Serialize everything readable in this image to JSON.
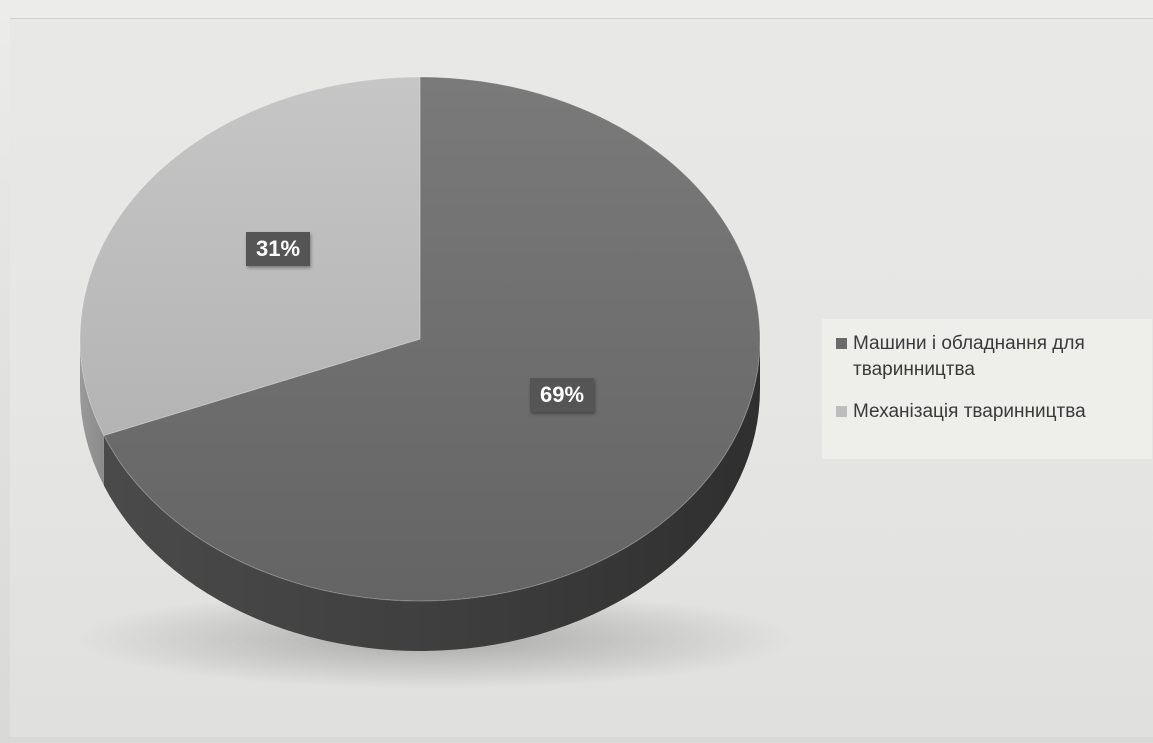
{
  "chart_data": {
    "type": "pie",
    "style": "3d",
    "start_angle": "12 o'clock, clockwise",
    "categories": [
      "Машини і обладнання для тваринництва",
      "Механізація тваринництва"
    ],
    "values": [
      69,
      31
    ],
    "data_labels": [
      "69%",
      "31%"
    ],
    "colors": [
      "#6a6a6a",
      "#bdbdbd"
    ],
    "legend": {
      "position": "right",
      "entries": [
        "Машини і обладнання для тваринництва",
        "Механізація тваринництва"
      ]
    }
  },
  "icons": {
    "legend_swatch_1": "square-swatch-dark",
    "legend_swatch_2": "square-swatch-light"
  }
}
